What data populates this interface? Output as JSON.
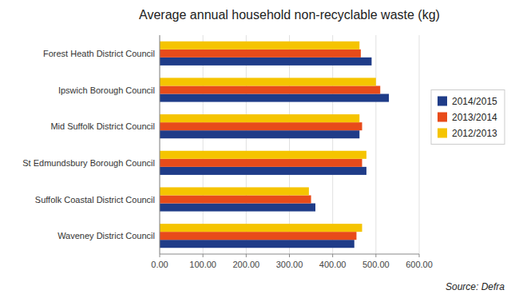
{
  "chart_data": {
    "type": "bar",
    "orientation": "horizontal",
    "title": "Average annual household non-recyclable waste (kg)",
    "categories": [
      "Forest Heath District Council",
      "Ipswich Borough Council",
      "Mid Suffolk District Council",
      "St Edmundsbury Borough Council",
      "Suffolk Coastal District Council",
      "Waveney District Council"
    ],
    "series": [
      {
        "name": "2014/2015",
        "color": "#1F3C88",
        "values": [
          490,
          530,
          462,
          478,
          360,
          450
        ]
      },
      {
        "name": "2013/2014",
        "color": "#E84B1A",
        "values": [
          465,
          510,
          468,
          468,
          350,
          455
        ]
      },
      {
        "name": "2012/2013",
        "color": "#F5C400",
        "values": [
          462,
          500,
          462,
          478,
          345,
          468
        ]
      }
    ],
    "xlim": [
      0,
      600
    ],
    "xticks": [
      {
        "value": 0,
        "label": "0.00"
      },
      {
        "value": 100,
        "label": "100.00"
      },
      {
        "value": 200,
        "label": "200.00"
      },
      {
        "value": 300,
        "label": "300.00"
      },
      {
        "value": 400,
        "label": "400.00"
      },
      {
        "value": 500,
        "label": "500.00"
      },
      {
        "value": 600,
        "label": "600.00"
      }
    ],
    "grid": true,
    "legend": "right",
    "annotations": [
      "Source: Defra"
    ]
  }
}
